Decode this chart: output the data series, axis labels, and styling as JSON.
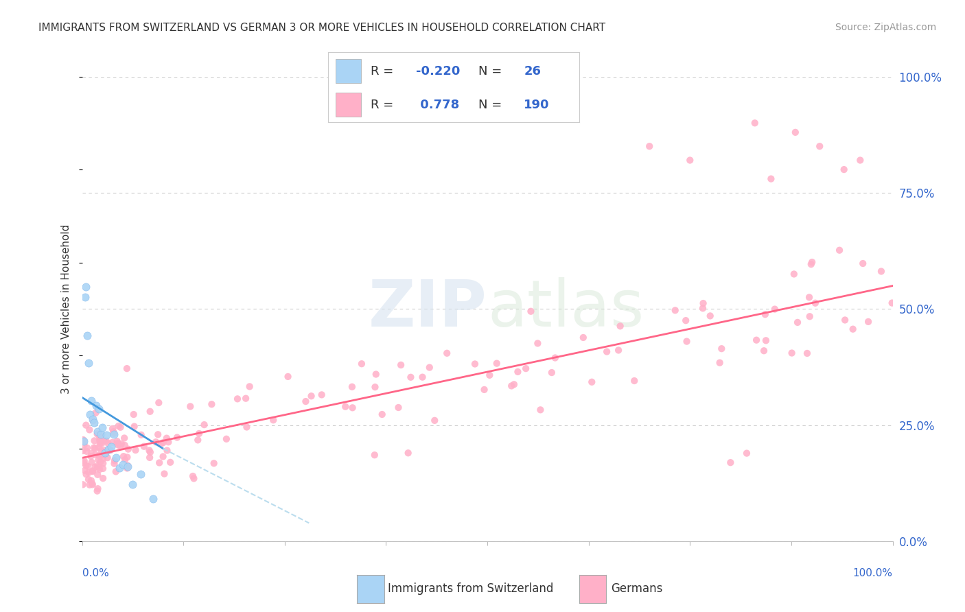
{
  "title": "IMMIGRANTS FROM SWITZERLAND VS GERMAN 3 OR MORE VEHICLES IN HOUSEHOLD CORRELATION CHART",
  "source": "Source: ZipAtlas.com",
  "ylabel": "3 or more Vehicles in Household",
  "y_tick_labels": [
    "0.0%",
    "25.0%",
    "50.0%",
    "75.0%",
    "100.0%"
  ],
  "y_tick_values": [
    0,
    25,
    50,
    75,
    100
  ],
  "dot_grid_color": "#cccccc",
  "background_color": "#ffffff",
  "blue_scatter_color": "#aad4f5",
  "blue_edge_color": "#88bbee",
  "pink_scatter_color": "#ffb0c8",
  "blue_line_color": "#4499dd",
  "blue_dash_color": "#bbddee",
  "pink_line_color": "#ff6688",
  "label_color": "#3366cc",
  "text_color": "#333333",
  "source_color": "#999999",
  "legend_line1_R": "R = ",
  "legend_line1_Rval": "-0.220",
  "legend_line1_N": "  N = ",
  "legend_line1_Nval": " 26",
  "legend_line2_R": "R = ",
  "legend_line2_Rval": " 0.778",
  "legend_line2_N": "  N = ",
  "legend_line2_Nval": "190",
  "bottom_label1": "Immigrants from Switzerland",
  "bottom_label2": "Germans"
}
